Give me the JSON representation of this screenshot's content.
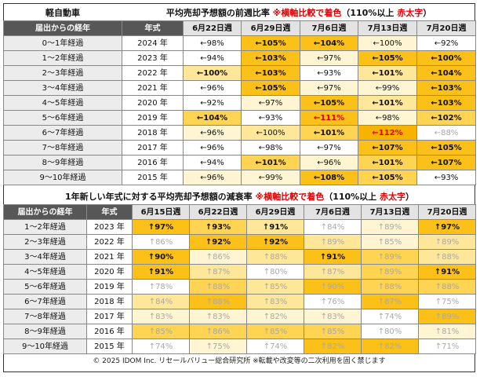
{
  "table1": {
    "title_left": "軽自動車",
    "title_main": "平均売却予想額の前週比率",
    "title_note": "※横軸比較で着色",
    "title_rule": "（110%以上",
    "title_rule_red": "赤太字",
    "title_rule_end": "）",
    "col_elapsed": "届出からの経年",
    "col_year": "年式",
    "dates": [
      "6月22日週",
      "6月29日週",
      "7月6日週",
      "7月13日週",
      "7月20日週"
    ],
    "rows": [
      {
        "elapsed": "0～1年経過",
        "year": "2024 年",
        "cells": [
          {
            "t": "←98%",
            "c": "c1"
          },
          {
            "t": "←105%",
            "c": "c5",
            "b": 1
          },
          {
            "t": "←104%",
            "c": "c5",
            "b": 1
          },
          {
            "t": "←100%",
            "c": "c2"
          },
          {
            "t": "←92%",
            "c": "c1"
          }
        ]
      },
      {
        "elapsed": "1～2年経過",
        "year": "2023 年",
        "cells": [
          {
            "t": "←94%",
            "c": "c1"
          },
          {
            "t": "←103%",
            "c": "c5",
            "b": 1
          },
          {
            "t": "←97%",
            "c": "c2"
          },
          {
            "t": "←105%",
            "c": "c5",
            "b": 1
          },
          {
            "t": "←100%",
            "c": "c5",
            "b": 1
          }
        ]
      },
      {
        "elapsed": "2～3年経過",
        "year": "2022 年",
        "cells": [
          {
            "t": "←100%",
            "c": "c3",
            "b": 1
          },
          {
            "t": "←103%",
            "c": "c5",
            "b": 1
          },
          {
            "t": "←93%",
            "c": "c1"
          },
          {
            "t": "←101%",
            "c": "c3",
            "b": 1
          },
          {
            "t": "←104%",
            "c": "c5",
            "b": 1
          }
        ]
      },
      {
        "elapsed": "3～4年経過",
        "year": "2021 年",
        "cells": [
          {
            "t": "←96%",
            "c": "c1"
          },
          {
            "t": "←105%",
            "c": "c5",
            "b": 1
          },
          {
            "t": "←97%",
            "c": "c2"
          },
          {
            "t": "←99%",
            "c": "c2"
          },
          {
            "t": "←103%",
            "c": "c5",
            "b": 1
          }
        ]
      },
      {
        "elapsed": "4～5年経過",
        "year": "2020 年",
        "cells": [
          {
            "t": "←92%",
            "c": "c1"
          },
          {
            "t": "←97%",
            "c": "c2"
          },
          {
            "t": "←105%",
            "c": "c5",
            "b": 1
          },
          {
            "t": "←101%",
            "c": "c3",
            "b": 1
          },
          {
            "t": "←103%",
            "c": "c5",
            "b": 1
          }
        ]
      },
      {
        "elapsed": "5～6年経過",
        "year": "2019 年",
        "cells": [
          {
            "t": "←104%",
            "c": "c4",
            "b": 1
          },
          {
            "t": "←93%",
            "c": "c1"
          },
          {
            "t": "←111%",
            "c": "c5",
            "red": 1
          },
          {
            "t": "←98%",
            "c": "c2"
          },
          {
            "t": "←102%",
            "c": "c4",
            "b": 1
          }
        ]
      },
      {
        "elapsed": "6～7年経過",
        "year": "2018 年",
        "cells": [
          {
            "t": "←96%",
            "c": "c2"
          },
          {
            "t": "←100%",
            "c": "c3"
          },
          {
            "t": "←101%",
            "c": "c4",
            "b": 1
          },
          {
            "t": "←112%",
            "c": "c6",
            "red": 1
          },
          {
            "t": "←88%",
            "c": "c1",
            "g": 1
          }
        ]
      },
      {
        "elapsed": "7～8年経過",
        "year": "2017 年",
        "cells": [
          {
            "t": "←96%",
            "c": "c1"
          },
          {
            "t": "←98%",
            "c": "c1"
          },
          {
            "t": "←97%",
            "c": "c1"
          },
          {
            "t": "←107%",
            "c": "c5",
            "b": 1
          },
          {
            "t": "←105%",
            "c": "c5",
            "b": 1
          }
        ]
      },
      {
        "elapsed": "8～9年経過",
        "year": "2016 年",
        "cells": [
          {
            "t": "←94%",
            "c": "c1"
          },
          {
            "t": "←101%",
            "c": "c4",
            "b": 1
          },
          {
            "t": "←96%",
            "c": "c2"
          },
          {
            "t": "←101%",
            "c": "c4",
            "b": 1
          },
          {
            "t": "←107%",
            "c": "c5",
            "b": 1
          }
        ]
      },
      {
        "elapsed": "9～10年経過",
        "year": "2015 年",
        "cells": [
          {
            "t": "←96%",
            "c": "c2"
          },
          {
            "t": "←99%",
            "c": "c2"
          },
          {
            "t": "←108%",
            "c": "c5",
            "b": 1
          },
          {
            "t": "←105%",
            "c": "c4",
            "b": 1
          },
          {
            "t": "←93%",
            "c": "c1"
          }
        ]
      }
    ]
  },
  "table2": {
    "title_main": "1年新しい年式に対する平均売却予想額の減衰率",
    "title_note": "※横軸比較で着色",
    "title_rule": "（110%以上",
    "title_rule_red": "赤太字",
    "title_rule_end": "）",
    "col_elapsed": "届出からの経年",
    "col_year": "年式",
    "dates": [
      "6月15日週",
      "6月22日週",
      "6月29日週",
      "7月6日週",
      "7月13日週",
      "7月20日週"
    ],
    "rows": [
      {
        "elapsed": "1～2年経過",
        "year": "2023 年",
        "cells": [
          {
            "t": "↑97%",
            "c": "c5",
            "b": 1
          },
          {
            "t": "↑93%",
            "c": "c4",
            "b": 1
          },
          {
            "t": "↑91%",
            "c": "c3",
            "b": 1
          },
          {
            "t": "↑84%",
            "c": "c1",
            "g": 1
          },
          {
            "t": "↑89%",
            "c": "c2",
            "g": 1
          },
          {
            "t": "↑97%",
            "c": "c5",
            "b": 1
          }
        ]
      },
      {
        "elapsed": "2～3年経過",
        "year": "2022 年",
        "cells": [
          {
            "t": "↑86%",
            "c": "c1",
            "g": 1
          },
          {
            "t": "↑92%",
            "c": "c5",
            "b": 1
          },
          {
            "t": "↑92%",
            "c": "c5",
            "b": 1
          },
          {
            "t": "↑89%",
            "c": "c3",
            "g": 1
          },
          {
            "t": "↑85%",
            "c": "c2",
            "g": 1
          },
          {
            "t": "↑89%",
            "c": "c3",
            "g": 1
          }
        ]
      },
      {
        "elapsed": "3～4年経過",
        "year": "2021 年",
        "cells": [
          {
            "t": "↑90%",
            "c": "c5",
            "b": 1
          },
          {
            "t": "↑86%",
            "c": "c2",
            "g": 1
          },
          {
            "t": "↑88%",
            "c": "c3",
            "g": 1
          },
          {
            "t": "↑91%",
            "c": "c5",
            "b": 1
          },
          {
            "t": "↑89%",
            "c": "c4",
            "g": 1
          },
          {
            "t": "↑88%",
            "c": "c3",
            "g": 1
          }
        ]
      },
      {
        "elapsed": "4～5年経過",
        "year": "2020 年",
        "cells": [
          {
            "t": "↑91%",
            "c": "c5",
            "b": 1
          },
          {
            "t": "↑87%",
            "c": "c3",
            "g": 1
          },
          {
            "t": "↑80%",
            "c": "c1",
            "g": 1
          },
          {
            "t": "↑87%",
            "c": "c3",
            "g": 1
          },
          {
            "t": "↑89%",
            "c": "c4",
            "g": 1
          },
          {
            "t": "↑91%",
            "c": "c5",
            "b": 1
          }
        ]
      },
      {
        "elapsed": "5～6年経過",
        "year": "2019 年",
        "cells": [
          {
            "t": "↑78%",
            "c": "c1",
            "g": 1
          },
          {
            "t": "↑88%",
            "c": "c4",
            "g": 1
          },
          {
            "t": "↑85%",
            "c": "c3",
            "g": 1
          },
          {
            "t": "↑90%",
            "c": "c5",
            "g": 1
          },
          {
            "t": "↑88%",
            "c": "c4",
            "g": 1
          },
          {
            "t": "↑88%",
            "c": "c4",
            "g": 1
          }
        ]
      },
      {
        "elapsed": "6～7年経過",
        "year": "2018 年",
        "cells": [
          {
            "t": "↑84%",
            "c": "c3",
            "g": 1
          },
          {
            "t": "↑88%",
            "c": "c5",
            "g": 1
          },
          {
            "t": "↑83%",
            "c": "c3",
            "g": 1
          },
          {
            "t": "↑76%",
            "c": "c1",
            "g": 1
          },
          {
            "t": "↑87%",
            "c": "c5",
            "g": 1
          },
          {
            "t": "↑75%",
            "c": "c1",
            "g": 1
          }
        ]
      },
      {
        "elapsed": "7～8年経過",
        "year": "2017 年",
        "cells": [
          {
            "t": "↑83%",
            "c": "c2",
            "g": 1
          },
          {
            "t": "↑83%",
            "c": "c2",
            "g": 1
          },
          {
            "t": "↑82%",
            "c": "c2",
            "g": 1
          },
          {
            "t": "↑83%",
            "c": "c2",
            "g": 1
          },
          {
            "t": "↑74%",
            "c": "c1",
            "g": 1
          },
          {
            "t": "↑89%",
            "c": "c5",
            "g": 1
          }
        ]
      },
      {
        "elapsed": "8～9年経過",
        "year": "2016 年",
        "cells": [
          {
            "t": "↑85%",
            "c": "c4",
            "g": 1
          },
          {
            "t": "↑86%",
            "c": "c4",
            "g": 1
          },
          {
            "t": "↑85%",
            "c": "c4",
            "g": 1
          },
          {
            "t": "↑85%",
            "c": "c4",
            "g": 1
          },
          {
            "t": "↑80%",
            "c": "c1",
            "g": 1
          },
          {
            "t": "↑81%",
            "c": "c2",
            "g": 1
          }
        ]
      },
      {
        "elapsed": "9～10年経過",
        "year": "2015 年",
        "cells": [
          {
            "t": "↑74%",
            "c": "c1",
            "g": 1
          },
          {
            "t": "↑75%",
            "c": "c2",
            "g": 1
          },
          {
            "t": "↑74%",
            "c": "c1",
            "g": 1
          },
          {
            "t": "↑82%",
            "c": "c5",
            "g": 1
          },
          {
            "t": "↑82%",
            "c": "c5",
            "g": 1
          },
          {
            "t": "↑71%",
            "c": "c1",
            "g": 1
          }
        ]
      }
    ]
  },
  "footer": "© 2025 IDOM Inc. リセールバリュー総合研究所 ※転載や改変等の二次利用を固く禁じます"
}
